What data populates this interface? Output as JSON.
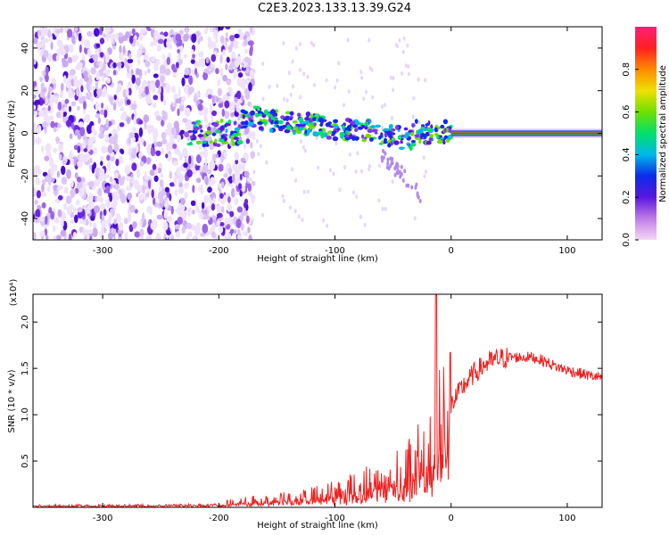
{
  "title": "C2E3.2023.133.13.39.G24",
  "colors": {
    "signal": "#ee2020",
    "speckle": "#5a12d8",
    "axis": "#000000",
    "noise_light": "#c9b1f2"
  },
  "chart_data": [
    {
      "type": "heatmap",
      "xlabel": "Height of straight line (km)",
      "ylabel": "Frequency (Hz)",
      "xlim": [
        -360,
        130
      ],
      "ylim": [
        -50,
        50
      ],
      "xticks": [
        -300,
        -200,
        -100,
        0,
        100
      ],
      "yticks": [
        -40,
        -20,
        0,
        20,
        40
      ],
      "colorbar": {
        "label": "Normalized spectral amplitude",
        "range": [
          0.0,
          1.0
        ],
        "ticks": [
          0.0,
          0.2,
          0.4,
          0.6,
          0.8
        ],
        "colors": [
          "#f5d8f5",
          "#c17be8",
          "#5a16e0",
          "#0b2ce8",
          "#00b8e8",
          "#00e06a",
          "#6ee000",
          "#f0e000",
          "#ff8a00",
          "#ff2020",
          "#ff1f7a"
        ]
      },
      "ridge": {
        "x": [
          -180,
          -150,
          -120,
          -100,
          -80,
          -60,
          -45,
          -35,
          -30,
          -20,
          -10,
          0,
          50,
          100,
          130
        ],
        "y": [
          8,
          6,
          4,
          2,
          2,
          0,
          -2,
          -3,
          1,
          0,
          1,
          0,
          0,
          0,
          0
        ]
      }
    },
    {
      "type": "line",
      "xlabel": "Height of straight line (km)",
      "ylabel": "SNR (10 * v/v)",
      "yscale_label": "(x10⁴)",
      "xlim": [
        -360,
        130
      ],
      "ylim": [
        0,
        2.3
      ],
      "xticks": [
        -300,
        -200,
        -100,
        0,
        100
      ],
      "yticks": [
        0.5,
        1.0,
        1.5,
        2.0
      ],
      "series": [
        {
          "x": [
            -360,
            -300,
            -250,
            -200,
            -180,
            -150,
            -120,
            -100,
            -80,
            -60,
            -40,
            -30,
            -20,
            -15,
            -10,
            0,
            10,
            20,
            30,
            40,
            50,
            60,
            70,
            80,
            90,
            100,
            110,
            120,
            130
          ],
          "values": [
            0.02,
            0.02,
            0.02,
            0.03,
            0.06,
            0.08,
            0.12,
            0.16,
            0.22,
            0.3,
            0.38,
            0.45,
            0.6,
            0.7,
            0.85,
            1.1,
            1.3,
            1.45,
            1.55,
            1.6,
            1.62,
            1.62,
            1.62,
            1.58,
            1.52,
            1.48,
            1.45,
            1.42,
            1.4
          ]
        }
      ]
    }
  ]
}
